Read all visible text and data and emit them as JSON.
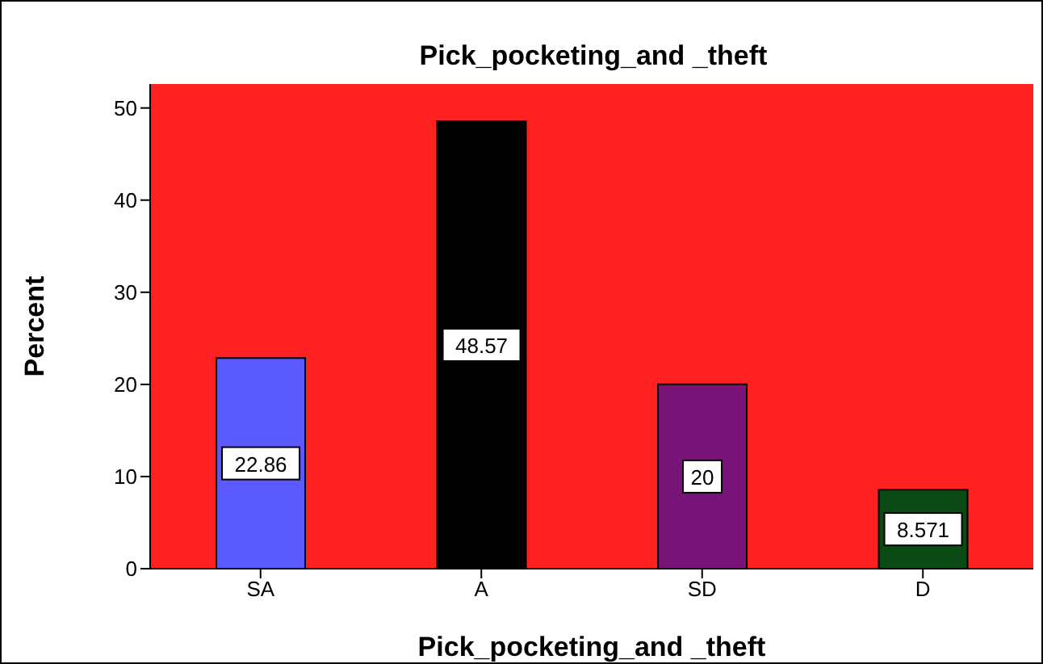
{
  "chart_data": {
    "type": "bar",
    "title": "Pick_pocketing_and _theft",
    "xlabel": "Pick_pocketing_and _theft",
    "ylabel": "Percent",
    "categories": [
      "SA",
      "A",
      "SD",
      "D"
    ],
    "values": [
      22.86,
      48.57,
      20,
      8.571
    ],
    "colors": [
      "#5a5aff",
      "#000000",
      "#781478",
      "#0a4a14"
    ],
    "ylim": [
      0,
      52.6
    ],
    "yticks": [
      0,
      10,
      20,
      30,
      40,
      50
    ],
    "grid": false,
    "data_labels": true
  }
}
